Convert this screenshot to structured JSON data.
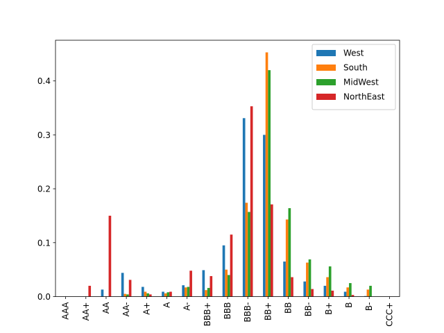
{
  "chart_data": {
    "type": "bar",
    "title": "",
    "xlabel": "",
    "ylabel": "",
    "categories": [
      "AAA",
      "AA+",
      "AA",
      "AA-",
      "A+",
      "A",
      "A-",
      "BBB+",
      "BBB",
      "BBB-",
      "BB+",
      "BB",
      "BB-",
      "B+",
      "B",
      "B-",
      "CCC+"
    ],
    "series": [
      {
        "name": "West",
        "color": "#1f77b4",
        "values": [
          0,
          0,
          0.013,
          0.044,
          0.018,
          0.009,
          0.021,
          0.049,
          0.095,
          0.331,
          0.3,
          0.065,
          0.028,
          0.02,
          0.009,
          0.001,
          0
        ]
      },
      {
        "name": "South",
        "color": "#ff7f0e",
        "values": [
          0,
          0,
          0,
          0.005,
          0.009,
          0.006,
          0.017,
          0.012,
          0.05,
          0.174,
          0.453,
          0.143,
          0.063,
          0.036,
          0.017,
          0.013,
          0
        ]
      },
      {
        "name": "MidWest",
        "color": "#2ca02c",
        "values": [
          0,
          0,
          0,
          0.004,
          0.006,
          0.008,
          0.018,
          0.016,
          0.04,
          0.157,
          0.42,
          0.164,
          0.069,
          0.056,
          0.025,
          0.02,
          0
        ]
      },
      {
        "name": "NorthEast",
        "color": "#d62728",
        "values": [
          0,
          0.02,
          0.15,
          0.031,
          0.004,
          0.009,
          0.048,
          0.038,
          0.115,
          0.353,
          0.171,
          0.036,
          0.014,
          0.011,
          0.003,
          0,
          0
        ]
      }
    ],
    "yticks": [
      0.0,
      0.1,
      0.2,
      0.3,
      0.4
    ],
    "ytick_labels": [
      "0.0",
      "0.1",
      "0.2",
      "0.3",
      "0.4"
    ],
    "ylim": [
      0,
      0.4755
    ],
    "grid": false,
    "legend_position": "top-right"
  }
}
